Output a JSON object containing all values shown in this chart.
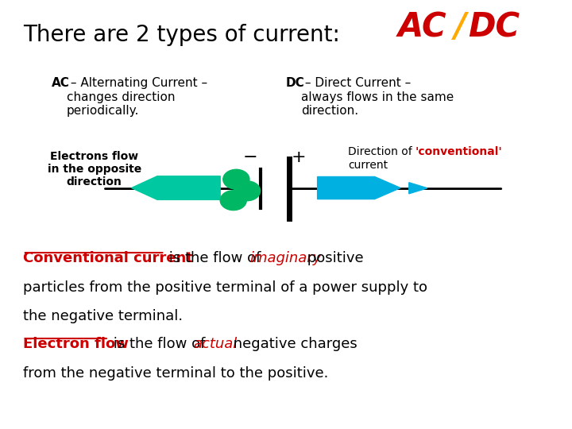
{
  "bg_color": "#ffffff",
  "title": "There are 2 types of current:",
  "title_fontsize": 20,
  "ac_label_bold": "AC",
  "dc_label_bold": "DC",
  "electrons_label": "Electrons flow\nin the opposite\ndirection",
  "arrow_left_color": "#00c8a0",
  "arrow_right_color": "#00b0e0",
  "dot_color": "#00b864",
  "line_color": "#000000",
  "text_color": "#000000",
  "red_color": "#cc0000",
  "paragraph1_red": "Conventional current",
  "paragraph1_rest": " is the flow of ",
  "paragraph1_italic": "imaginary",
  "paragraph1_rest2": " positive",
  "paragraph1_line2": "particles from the positive terminal of a power supply to",
  "paragraph1_line3": "the negative terminal.",
  "paragraph2_red": "Electron flow",
  "paragraph2_rest": " is the flow of ",
  "paragraph2_italic": "actual",
  "paragraph2_rest2": " negative charges",
  "paragraph2_line2": "from the negative terminal to the positive."
}
